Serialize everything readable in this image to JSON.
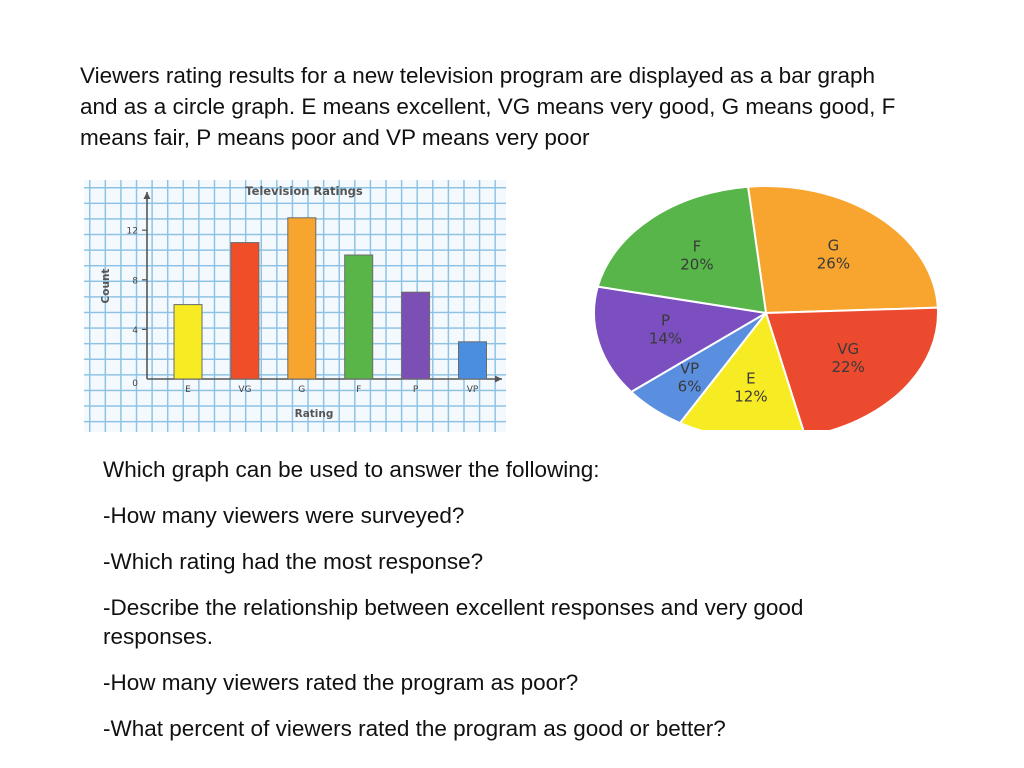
{
  "intro_text": "Viewers rating results for a new television program are displayed as a bar graph and as a circle graph.  E means excellent, VG means very good, G means good, F means fair, P means poor and VP means very poor",
  "chart_data": [
    {
      "type": "bar",
      "title": "Television Ratings",
      "xlabel": "Rating",
      "ylabel": "Count",
      "categories": [
        "E",
        "VG",
        "G",
        "F",
        "P",
        "VP"
      ],
      "values": [
        6,
        11,
        13,
        10,
        7,
        3
      ],
      "colors": [
        "#f7ec23",
        "#f04e28",
        "#f7a52f",
        "#59b548",
        "#7c4fb5",
        "#4a8ee0"
      ],
      "ylim": [
        0,
        16
      ],
      "yticks": [
        0,
        4,
        8,
        12
      ],
      "grid": true
    },
    {
      "type": "pie",
      "slices": [
        {
          "label": "G",
          "value": 26,
          "value_label": "26%",
          "color": "#f7a52f"
        },
        {
          "label": "VG",
          "value": 22,
          "value_label": "22%",
          "color": "#ec4a2e"
        },
        {
          "label": "E",
          "value": 12,
          "value_label": "12%",
          "color": "#f7ec23"
        },
        {
          "label": "VP",
          "value": 6,
          "value_label": "6%",
          "color": "#5a8fe0"
        },
        {
          "label": "P",
          "value": 14,
          "value_label": "14%",
          "color": "#7b4fbf"
        },
        {
          "label": "F",
          "value": 20,
          "value_label": "20%",
          "color": "#57b54a"
        }
      ]
    }
  ],
  "questions": {
    "header": "Which graph can be used to answer the following:",
    "items": [
      "-How many viewers were surveyed?",
      "-Which rating had the most response?",
      "-Describe the relationship between excellent responses and very good responses.",
      "-How many viewers rated the program as poor?",
      "-What percent of viewers rated the program as good or better?"
    ]
  }
}
